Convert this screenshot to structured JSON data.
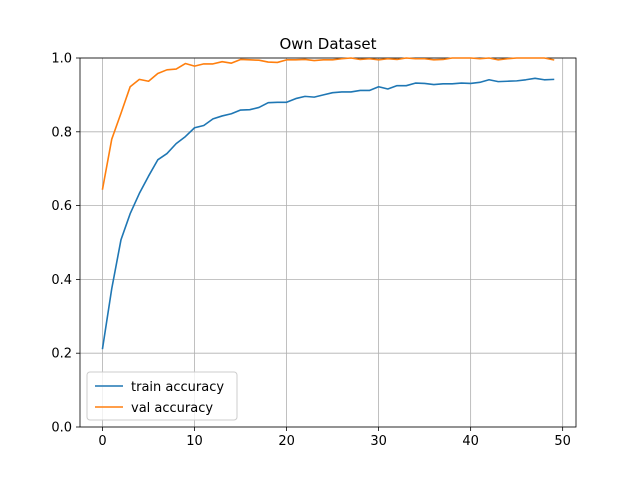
{
  "chart_data": {
    "type": "line",
    "title": "Own Dataset",
    "xlabel": "",
    "ylabel": "",
    "xlim": [
      -2.45,
      51.45
    ],
    "ylim": [
      0.0,
      1.0
    ],
    "xticks": [
      0,
      10,
      20,
      30,
      40,
      50
    ],
    "yticks": [
      0.0,
      0.2,
      0.4,
      0.6,
      0.8,
      1.0
    ],
    "xtick_labels": [
      "0",
      "10",
      "20",
      "30",
      "40",
      "50"
    ],
    "ytick_labels": [
      "0.0",
      "0.2",
      "0.4",
      "0.6",
      "0.8",
      "1.0"
    ],
    "grid": true,
    "legend_position": "lower-left",
    "x": [
      0,
      1,
      2,
      3,
      4,
      5,
      6,
      7,
      8,
      9,
      10,
      11,
      12,
      13,
      14,
      15,
      16,
      17,
      18,
      19,
      20,
      21,
      22,
      23,
      24,
      25,
      26,
      27,
      28,
      29,
      30,
      31,
      32,
      33,
      34,
      35,
      36,
      37,
      38,
      39,
      40,
      41,
      42,
      43,
      44,
      45,
      46,
      47,
      48,
      49
    ],
    "series": [
      {
        "name": "train accuracy",
        "color": "#1f77b4",
        "values": [
          0.213,
          0.375,
          0.507,
          0.578,
          0.633,
          0.68,
          0.724,
          0.741,
          0.768,
          0.787,
          0.811,
          0.817,
          0.835,
          0.843,
          0.849,
          0.859,
          0.86,
          0.866,
          0.879,
          0.88,
          0.88,
          0.89,
          0.896,
          0.894,
          0.9,
          0.906,
          0.908,
          0.908,
          0.912,
          0.912,
          0.922,
          0.916,
          0.925,
          0.925,
          0.932,
          0.931,
          0.928,
          0.93,
          0.93,
          0.932,
          0.931,
          0.934,
          0.941,
          0.936,
          0.937,
          0.938,
          0.941,
          0.945,
          0.941,
          0.942
        ]
      },
      {
        "name": "val accuracy",
        "color": "#ff7f0e",
        "values": [
          0.645,
          0.78,
          0.85,
          0.922,
          0.942,
          0.937,
          0.958,
          0.968,
          0.97,
          0.985,
          0.978,
          0.984,
          0.984,
          0.99,
          0.986,
          0.996,
          0.995,
          0.994,
          0.989,
          0.988,
          0.995,
          0.995,
          0.996,
          0.993,
          0.995,
          0.995,
          0.998,
          1.0,
          0.996,
          0.998,
          0.995,
          0.998,
          0.996,
          1.0,
          0.998,
          0.998,
          0.995,
          0.996,
          1.0,
          1.0,
          1.0,
          0.998,
          1.0,
          0.995,
          0.998,
          1.0,
          1.0,
          1.0,
          1.0,
          0.995
        ]
      }
    ]
  }
}
